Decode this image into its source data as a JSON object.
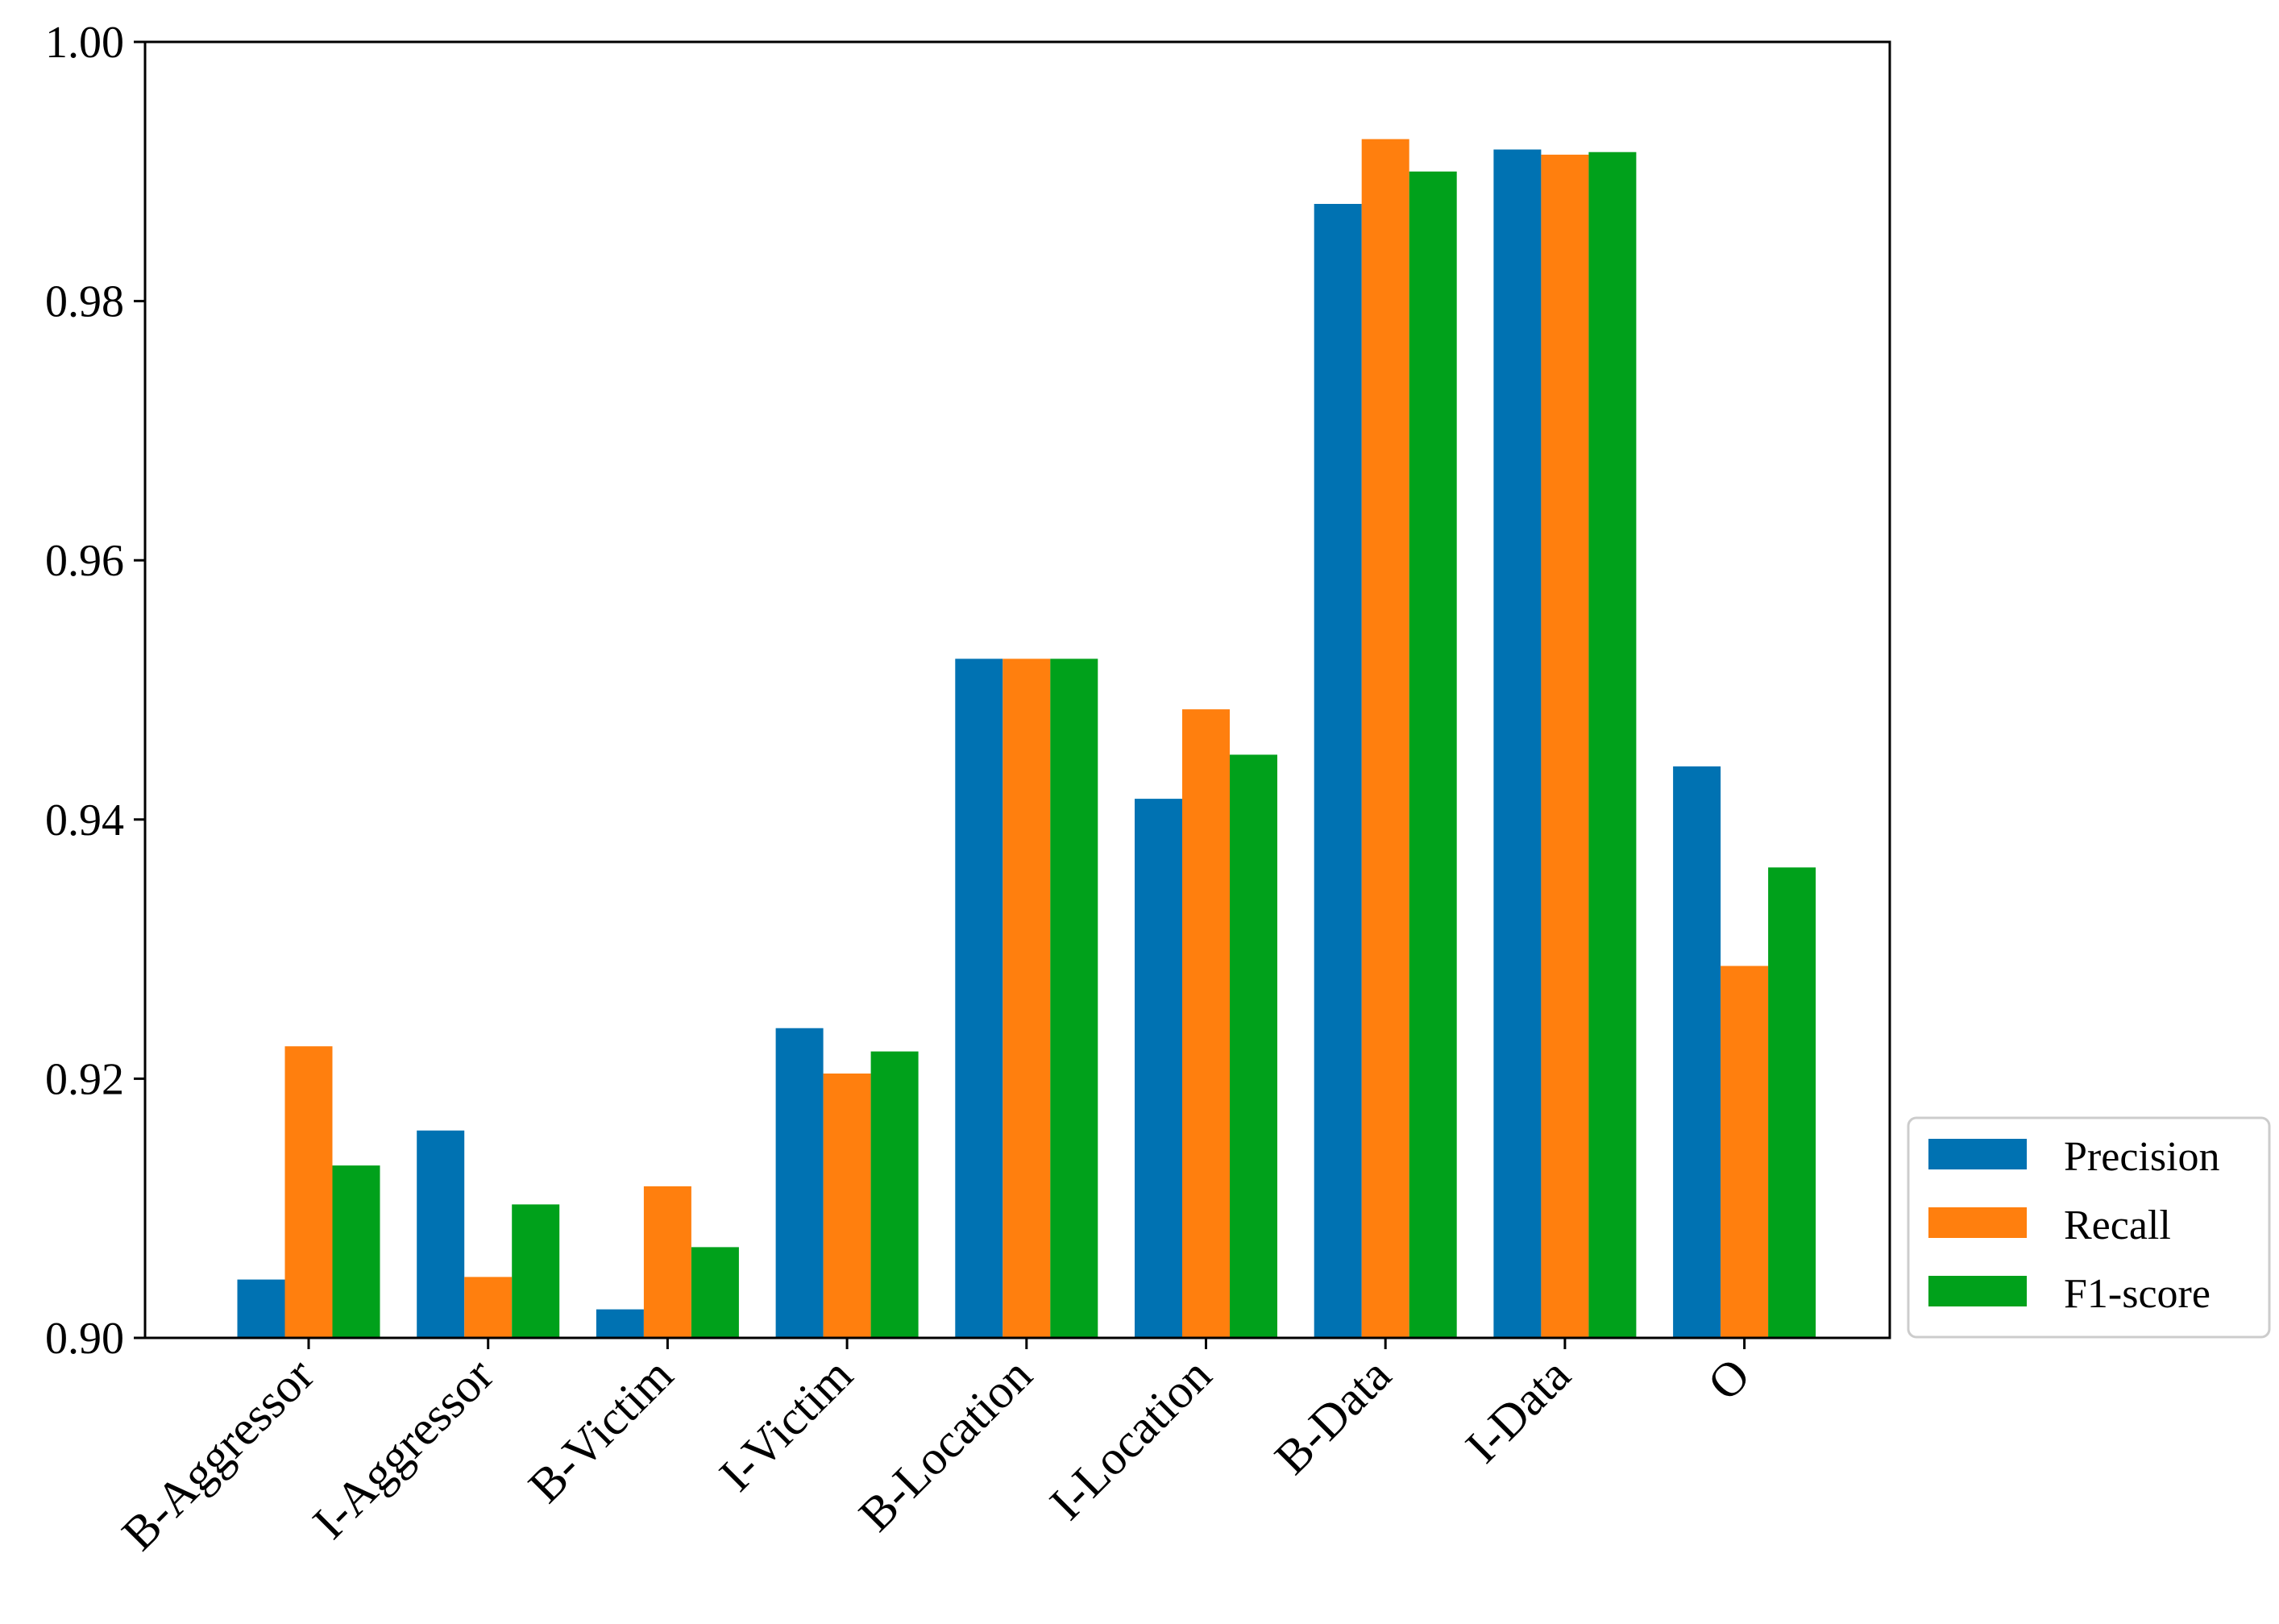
{
  "chart_data": {
    "type": "bar",
    "title": "",
    "xlabel": "",
    "ylabel": "",
    "ylim": [
      0.9,
      1.0
    ],
    "yticks": [
      "0.90",
      "0.92",
      "0.94",
      "0.96",
      "0.98",
      "1.00"
    ],
    "ytick_values": [
      0.9,
      0.92,
      0.94,
      0.96,
      0.98,
      1.0
    ],
    "grid": false,
    "legend_position": "bottom-right-outside",
    "categories": [
      "B-Aggressor",
      "I-Aggressor",
      "B-Victim",
      "I-Victim",
      "B-Location",
      "I-Location",
      "B-Data",
      "I-Data",
      "O"
    ],
    "series": [
      {
        "name": "Precision",
        "color": "#0072b2",
        "values": [
          0.9045,
          0.916,
          0.9022,
          0.9239,
          0.9524,
          0.9416,
          0.9875,
          0.9917,
          0.9441
        ]
      },
      {
        "name": "Recall",
        "color": "#ff7f0e",
        "values": [
          0.9225,
          0.9047,
          0.9117,
          0.9204,
          0.9524,
          0.9485,
          0.9925,
          0.9913,
          0.9287
        ]
      },
      {
        "name": "F1-score",
        "color": "#00a11b",
        "values": [
          0.9133,
          0.9103,
          0.907,
          0.9221,
          0.9524,
          0.945,
          0.99,
          0.9915,
          0.9363
        ]
      }
    ]
  }
}
